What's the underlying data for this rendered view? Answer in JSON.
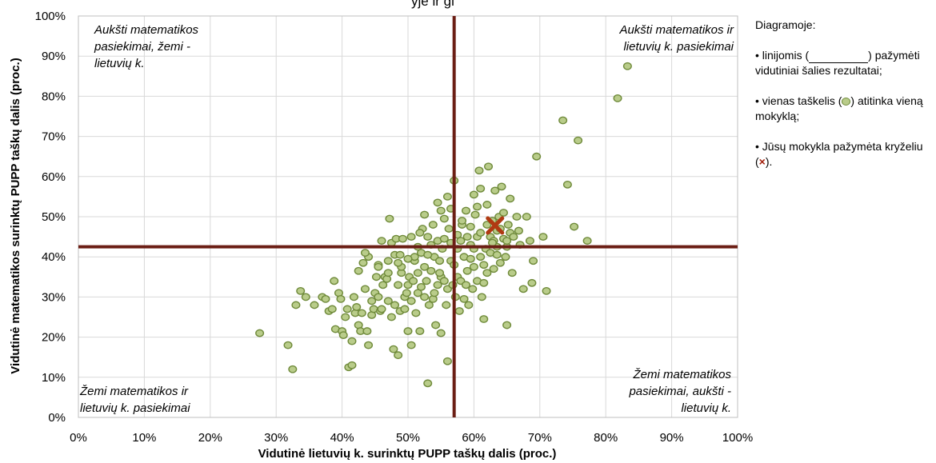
{
  "chart_data": {
    "type": "scatter",
    "title_fragment": "yje ir gi",
    "xlabel": "Vidutinė lietuvių k. surinktų PUPP taškų dalis (proc.)",
    "ylabel": "Vidutinė matematikos surinktų PUPP taškų dalis (proc.)",
    "xlim": [
      0,
      100
    ],
    "ylim": [
      0,
      100
    ],
    "x_ticks": [
      "0%",
      "10%",
      "20%",
      "30%",
      "40%",
      "50%",
      "60%",
      "70%",
      "80%",
      "90%",
      "100%"
    ],
    "y_ticks": [
      "0%",
      "10%",
      "20%",
      "30%",
      "40%",
      "50%",
      "60%",
      "70%",
      "80%",
      "90%",
      "100%"
    ],
    "grid": true,
    "reference_lines": {
      "x": 57,
      "y": 42.5,
      "color": "#6b1e14"
    },
    "school_marker": {
      "x": 63.2,
      "y": 47.8,
      "color": "#b03a12"
    },
    "point_fill": "#b9cc8a",
    "point_edge": "#6f8a3a",
    "quadrant_labels": {
      "top_left": [
        "Aukšti matematikos",
        "pasiekimai, žemi -",
        "lietuvių k."
      ],
      "top_right": [
        "Aukšti matematikos ir",
        "lietuvių k. pasiekimai"
      ],
      "bottom_left": [
        "Žemi matematikos ir",
        "lietuvių k. pasiekimai"
      ],
      "bottom_right": [
        "Žemi matematikos",
        "pasiekimai, aukšti -",
        "lietuvių k."
      ]
    },
    "points": [
      [
        27.5,
        21
      ],
      [
        31.8,
        18
      ],
      [
        32.5,
        12
      ],
      [
        33,
        28
      ],
      [
        33.7,
        31.5
      ],
      [
        34.5,
        30
      ],
      [
        35.8,
        28
      ],
      [
        37,
        30
      ],
      [
        37.5,
        29.5
      ],
      [
        38,
        26.5
      ],
      [
        38.5,
        27
      ],
      [
        38.8,
        34
      ],
      [
        39,
        22
      ],
      [
        39.5,
        31
      ],
      [
        39.8,
        29.5
      ],
      [
        40,
        21.5
      ],
      [
        40.2,
        20.5
      ],
      [
        40.5,
        25
      ],
      [
        40.8,
        27
      ],
      [
        41,
        12.5
      ],
      [
        41.5,
        13
      ],
      [
        41.5,
        19
      ],
      [
        41.8,
        30
      ],
      [
        42,
        26
      ],
      [
        42.2,
        27.5
      ],
      [
        42.5,
        23
      ],
      [
        42.5,
        36.5
      ],
      [
        42.8,
        21.5
      ],
      [
        43,
        26
      ],
      [
        43.2,
        38.5
      ],
      [
        43.5,
        32
      ],
      [
        43.8,
        21.5
      ],
      [
        44,
        40
      ],
      [
        44,
        18
      ],
      [
        44.5,
        25.5
      ],
      [
        44.5,
        29
      ],
      [
        44.8,
        27
      ],
      [
        45,
        31
      ],
      [
        45.2,
        35
      ],
      [
        45.5,
        30
      ],
      [
        45.5,
        38
      ],
      [
        45.8,
        26.5
      ],
      [
        46,
        27
      ],
      [
        46.2,
        33
      ],
      [
        46.5,
        35
      ],
      [
        46.8,
        34.5
      ],
      [
        47,
        29
      ],
      [
        47,
        39
      ],
      [
        47.2,
        49.5
      ],
      [
        47.5,
        25
      ],
      [
        47.5,
        43.5
      ],
      [
        47.8,
        17
      ],
      [
        48,
        28
      ],
      [
        48,
        40.5
      ],
      [
        48.2,
        44.5
      ],
      [
        48.5,
        15.5
      ],
      [
        48.5,
        33
      ],
      [
        48.8,
        26.5
      ],
      [
        49,
        36
      ],
      [
        49,
        37.5
      ],
      [
        49.2,
        44.5
      ],
      [
        49.5,
        27
      ],
      [
        49.5,
        30
      ],
      [
        49.8,
        31
      ],
      [
        50,
        21.5
      ],
      [
        50,
        33
      ],
      [
        50.2,
        35
      ],
      [
        50.5,
        18
      ],
      [
        50.5,
        29
      ],
      [
        50.8,
        34
      ],
      [
        51,
        39
      ],
      [
        51,
        40
      ],
      [
        51.2,
        26
      ],
      [
        51.5,
        31
      ],
      [
        51.5,
        36
      ],
      [
        51.8,
        21.5
      ],
      [
        52,
        32.5
      ],
      [
        52,
        41
      ],
      [
        52.2,
        47
      ],
      [
        52.5,
        30
      ],
      [
        52.5,
        37.5
      ],
      [
        52.8,
        34
      ],
      [
        53,
        8.5
      ],
      [
        53,
        45
      ],
      [
        53.2,
        28
      ],
      [
        53.5,
        36.5
      ],
      [
        53.5,
        43
      ],
      [
        53.8,
        29.5
      ],
      [
        54,
        31
      ],
      [
        54,
        40
      ],
      [
        54.2,
        23
      ],
      [
        54.5,
        33
      ],
      [
        54.5,
        44
      ],
      [
        54.8,
        39
      ],
      [
        55,
        21
      ],
      [
        55,
        35
      ],
      [
        55.2,
        42
      ],
      [
        55.5,
        34
      ],
      [
        55.5,
        44.5
      ],
      [
        55.8,
        28
      ],
      [
        56,
        14
      ],
      [
        56,
        32
      ],
      [
        56.2,
        47
      ],
      [
        56.5,
        39
      ],
      [
        56.5,
        43.5
      ],
      [
        56.8,
        33
      ],
      [
        57,
        38
      ],
      [
        57,
        59
      ],
      [
        57.2,
        30
      ],
      [
        57.5,
        35
      ],
      [
        57.5,
        42
      ],
      [
        57.8,
        26.5
      ],
      [
        58,
        34
      ],
      [
        58,
        44
      ],
      [
        58.2,
        48
      ],
      [
        58.5,
        29.5
      ],
      [
        58.5,
        40
      ],
      [
        58.8,
        33
      ],
      [
        59,
        36.5
      ],
      [
        59,
        45
      ],
      [
        59.2,
        28
      ],
      [
        59.5,
        43
      ],
      [
        59.5,
        47.5
      ],
      [
        59.8,
        32
      ],
      [
        60,
        37.5
      ],
      [
        60,
        42
      ],
      [
        60.2,
        50.5
      ],
      [
        60.5,
        34
      ],
      [
        60.5,
        45
      ],
      [
        60.8,
        61.5
      ],
      [
        61,
        40
      ],
      [
        61,
        46
      ],
      [
        61.2,
        30
      ],
      [
        61.5,
        24.5
      ],
      [
        61.5,
        33.5
      ],
      [
        61.8,
        42
      ],
      [
        62,
        36
      ],
      [
        62,
        48
      ],
      [
        62.2,
        62.5
      ],
      [
        62.5,
        41
      ],
      [
        62.5,
        45
      ],
      [
        62.8,
        49
      ],
      [
        63,
        37
      ],
      [
        63,
        44
      ],
      [
        63.2,
        56.5
      ],
      [
        63.5,
        42.5
      ],
      [
        63.5,
        46.5
      ],
      [
        63.8,
        50
      ],
      [
        64,
        38.5
      ],
      [
        64,
        47
      ],
      [
        64.2,
        57.5
      ],
      [
        64.5,
        44.5
      ],
      [
        64.5,
        51
      ],
      [
        64.8,
        40
      ],
      [
        65,
        23
      ],
      [
        65,
        42.5
      ],
      [
        65.2,
        48
      ],
      [
        65.5,
        46
      ],
      [
        65.5,
        54.5
      ],
      [
        65.8,
        36
      ],
      [
        66,
        45
      ],
      [
        66.5,
        50
      ],
      [
        67,
        43
      ],
      [
        67.5,
        32
      ],
      [
        68,
        50
      ],
      [
        68.5,
        44
      ],
      [
        68.8,
        33.5
      ],
      [
        69,
        39
      ],
      [
        69.5,
        65
      ],
      [
        70.5,
        45
      ],
      [
        71,
        31.5
      ],
      [
        73.5,
        74
      ],
      [
        74.2,
        58
      ],
      [
        75.2,
        47.5
      ],
      [
        75.8,
        69
      ],
      [
        77.2,
        44
      ],
      [
        81.8,
        79.5
      ],
      [
        83.3,
        87.5
      ],
      [
        46,
        44
      ],
      [
        48.8,
        40.5
      ],
      [
        50.5,
        45
      ],
      [
        51.8,
        46
      ],
      [
        52.5,
        50.5
      ],
      [
        53.8,
        48
      ],
      [
        54.5,
        53.5
      ],
      [
        55.5,
        49.5
      ],
      [
        56.5,
        52
      ],
      [
        58.2,
        49
      ],
      [
        60.5,
        52.5
      ],
      [
        62.8,
        43.5
      ],
      [
        43.5,
        41
      ],
      [
        45.5,
        37.5
      ],
      [
        47,
        36
      ],
      [
        48.5,
        38.5
      ],
      [
        50,
        39.5
      ],
      [
        51.5,
        42.5
      ],
      [
        53,
        40.5
      ],
      [
        54.8,
        36
      ],
      [
        57.5,
        45.5
      ],
      [
        59.5,
        39.5
      ],
      [
        61.5,
        38
      ],
      [
        63.5,
        40.5
      ],
      [
        65,
        44
      ],
      [
        66.8,
        46.5
      ],
      [
        60,
        55.5
      ],
      [
        61,
        57
      ],
      [
        62,
        53
      ],
      [
        58.8,
        51.5
      ],
      [
        56,
        55
      ],
      [
        55,
        51.5
      ]
    ]
  }
}
